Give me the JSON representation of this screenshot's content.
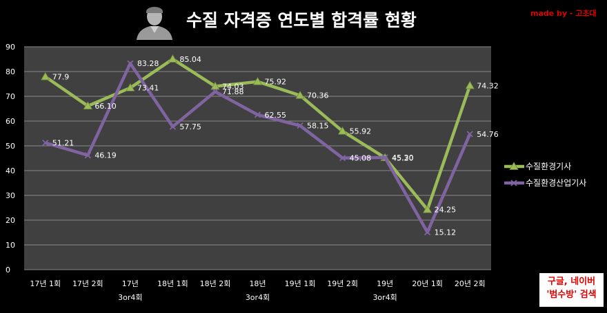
{
  "header": {
    "title": "수질 자격증 연도별 합격률 현황",
    "credit": "made by - 고초대"
  },
  "note": {
    "line1": "구글, 네이버",
    "line2": "'범수방' 검색"
  },
  "colors": {
    "background": "#000000",
    "plot_area": "#404040",
    "series_green": "#9bbb59",
    "series_purple": "#8064a2",
    "note_text": "#e00000"
  },
  "chart_data": {
    "type": "line",
    "categories": [
      [
        "17년 1회"
      ],
      [
        "17년 2회"
      ],
      [
        "17년",
        "3or4회"
      ],
      [
        "18년 1회"
      ],
      [
        "18년 2회"
      ],
      [
        "18년",
        "3or4회"
      ],
      [
        "19년 1회"
      ],
      [
        "19년 2회"
      ],
      [
        "19년",
        "3or4회"
      ],
      [
        "20년 1회"
      ],
      [
        "20년 2회"
      ]
    ],
    "series": [
      {
        "name": "수질환경기사",
        "marker": "triangle",
        "values": [
          77.9,
          66.1,
          73.41,
          85.04,
          74.03,
          75.92,
          70.36,
          55.92,
          45.2,
          24.25,
          74.32
        ],
        "labels": [
          "77.9",
          "66.10",
          "73.41",
          "85.04",
          "74.03",
          "75.92",
          "70.36",
          "55.92",
          "45.20",
          "24.25",
          "74.32"
        ]
      },
      {
        "name": "수질환경산업기사",
        "marker": "x",
        "values": [
          51.21,
          46.19,
          83.28,
          57.75,
          71.88,
          62.55,
          58.15,
          45.08,
          45.3,
          15.12,
          54.76
        ],
        "labels": [
          "51.21",
          "46.19",
          "83.28",
          "57.75",
          "71.88",
          "62.55",
          "58.15",
          "45.08",
          "45.30",
          "15.12",
          "54.76"
        ]
      }
    ],
    "ylim": [
      0,
      90
    ],
    "yticks": [
      0,
      10,
      20,
      30,
      40,
      50,
      60,
      70,
      80,
      90
    ],
    "grid": true,
    "legend": "right"
  }
}
